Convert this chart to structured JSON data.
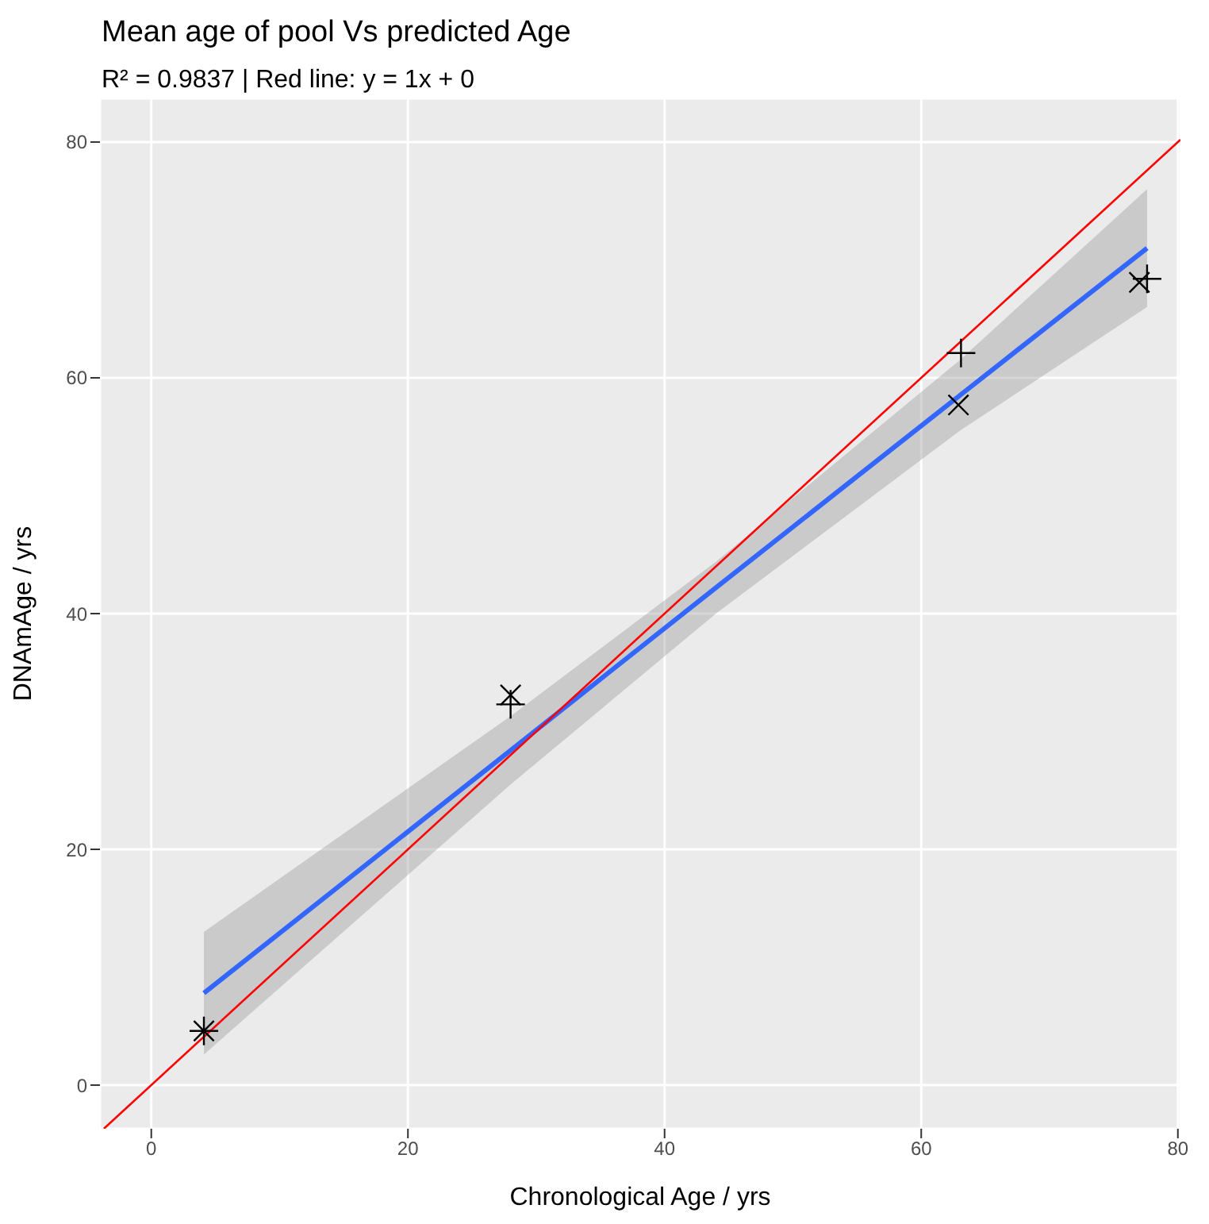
{
  "chart_data": {
    "type": "scatter",
    "title": "Mean age of pool Vs predicted Age",
    "subtitle": "R² = 0.9837 | Red line: y = 1x + 0",
    "xlabel": "Chronological Age / yrs",
    "ylabel": "DNAmAge / yrs",
    "xlim": [
      -4,
      80.2
    ],
    "ylim": [
      -3.7,
      83.7
    ],
    "xticks": [
      0,
      20,
      40,
      60,
      80
    ],
    "yticks": [
      0,
      20,
      40,
      60,
      80
    ],
    "grid": true,
    "series": [
      {
        "marker": "cross",
        "color": "#000000",
        "x": [
          4.1,
          28.0,
          62.9,
          77.0
        ],
        "values": [
          4.6,
          33.1,
          57.7,
          68.1
        ]
      },
      {
        "marker": "plus",
        "color": "#000000",
        "x": [
          4.1,
          28.0,
          63.1,
          77.6
        ],
        "values": [
          4.6,
          32.3,
          62.1,
          68.4
        ]
      },
      {
        "type": "line",
        "marker": "none",
        "color": "#3366ff",
        "x": [
          4.1,
          28.0,
          44.0,
          63.0,
          77.6
        ],
        "values": [
          7.8,
          28.4,
          42.2,
          58.5,
          71.0
        ],
        "lower": [
          2.6,
          25.5,
          40.0,
          55.5,
          66.0
        ],
        "upper": [
          13.0,
          31.3,
          44.4,
          61.5,
          76.0
        ]
      },
      {
        "type": "line",
        "marker": "none",
        "color": "#ff0000",
        "x": [
          -3.7,
          80.2
        ],
        "values": [
          -3.7,
          80.2
        ]
      }
    ]
  }
}
